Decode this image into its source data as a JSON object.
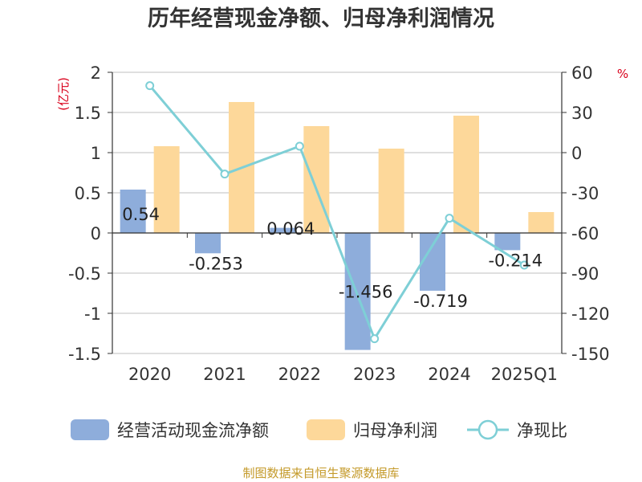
{
  "colors": {
    "operating_cash_flow": "#8eaddb",
    "net_profit": "#fdd89a",
    "ratio_line": "#7ecfd6",
    "grid": "#cccccc",
    "axis": "#333333",
    "unit": "#d9001b",
    "source": "#c49a2a"
  },
  "chart_data": {
    "type": "bar",
    "title": "历年经营现金净额、归母净利润情况",
    "categories": [
      "2020",
      "2021",
      "2022",
      "2023",
      "2024",
      "2025Q1"
    ],
    "y_left": {
      "unit": "(亿元)",
      "ylim": [
        -1.5,
        2
      ],
      "ticks": [
        2,
        1.5,
        1,
        0.5,
        0,
        -0.5,
        -1,
        -1.5
      ],
      "tick_labels": [
        "2",
        "1.5",
        "1",
        "0.5",
        "0",
        "-0.5",
        "-1",
        "-1.5"
      ]
    },
    "y_right": {
      "unit": "%",
      "ylim": [
        -150,
        60
      ],
      "ticks": [
        60,
        30,
        0,
        -30,
        -60,
        -90,
        -120,
        -150
      ],
      "tick_labels": [
        "60",
        "30",
        "0",
        "-30",
        "-60",
        "-90",
        "-120",
        "-150"
      ]
    },
    "grid": true,
    "legend_position": "bottom",
    "series": [
      {
        "name": "经营活动现金流净额",
        "type": "bar",
        "axis": "left",
        "values": [
          0.54,
          -0.253,
          0.064,
          -1.456,
          -0.719,
          -0.214
        ],
        "labels": [
          "0.54",
          "-0.253",
          "0.064",
          "-1.456",
          "-0.719",
          "-0.214"
        ]
      },
      {
        "name": "归母净利润",
        "type": "bar",
        "axis": "left",
        "values": [
          1.08,
          1.63,
          1.33,
          1.05,
          1.46,
          0.26
        ]
      },
      {
        "name": "净现比",
        "type": "line",
        "axis": "right",
        "values": [
          50,
          -16,
          4.8,
          -139,
          -49,
          -84
        ]
      }
    ],
    "source": "制图数据来自恒生聚源数据库"
  }
}
